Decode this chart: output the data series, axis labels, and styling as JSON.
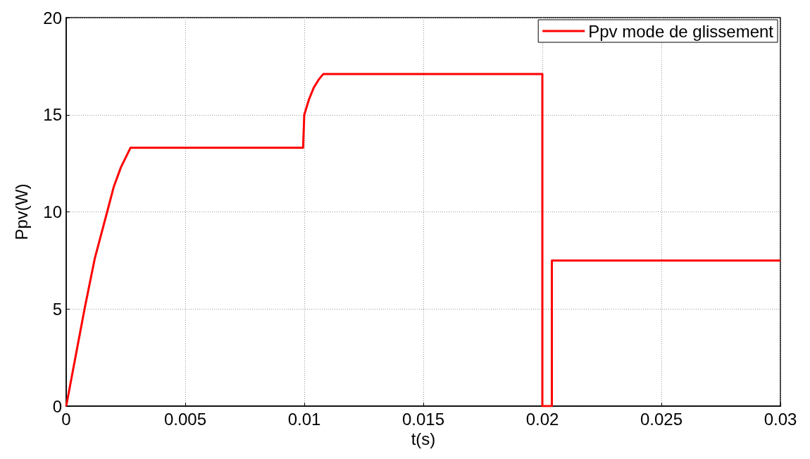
{
  "chart_data": {
    "type": "line",
    "xlabel": "t(s)",
    "ylabel": "Ppv(W)",
    "xlim": [
      0,
      0.03
    ],
    "xticks": [
      0,
      0.005,
      0.01,
      0.015,
      0.02,
      0.025,
      0.03
    ],
    "ylim": [
      0,
      20
    ],
    "yticks": [
      0,
      5,
      10,
      15,
      20
    ],
    "grid": true,
    "legend": "top right",
    "marker": "none",
    "line_style": "solid",
    "series": [
      {
        "name": "Ppv mode de glissement",
        "color": "#ff0000",
        "x": [
          0,
          0.0004,
          0.00077,
          0.0012,
          0.00172,
          0.002,
          0.0023,
          0.0025,
          0.0027,
          0.00995,
          0.01,
          0.0102,
          0.0104,
          0.0106,
          0.0108,
          0.02,
          0.02,
          0.0204,
          0.0204,
          0.03
        ],
        "values": [
          0,
          2.6,
          5,
          7.6,
          10,
          11.3,
          12.3,
          12.8,
          13.3,
          13.3,
          15,
          15.8,
          16.4,
          16.8,
          17.1,
          17.1,
          0,
          0,
          7.5,
          7.5
        ]
      }
    ]
  }
}
